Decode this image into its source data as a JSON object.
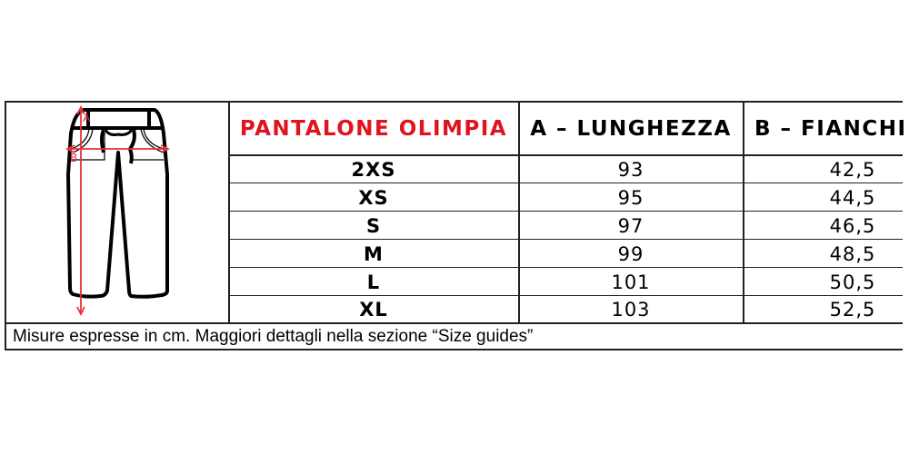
{
  "table": {
    "title": "PANTALONE OLIMPIA",
    "title_color": "#e0141e",
    "columns": [
      "A – LUNGHEZZA",
      "B – FIANCHI"
    ],
    "rows": [
      {
        "size": "2XS",
        "a": "93",
        "b": "42,5"
      },
      {
        "size": "XS",
        "a": "95",
        "b": "44,5"
      },
      {
        "size": "S",
        "a": "97",
        "b": "46,5"
      },
      {
        "size": "M",
        "a": "99",
        "b": "48,5"
      },
      {
        "size": "L",
        "a": "101",
        "b": "50,5"
      },
      {
        "size": "XL",
        "a": "103",
        "b": "52,5"
      }
    ],
    "footnote": "Misure espresse in cm. Maggiori dettagli nella sezione “Size guides”"
  },
  "illustration": {
    "icon": "pants-icon",
    "label_a": "A",
    "label_b": "B",
    "measure_color": "#e8323a"
  }
}
